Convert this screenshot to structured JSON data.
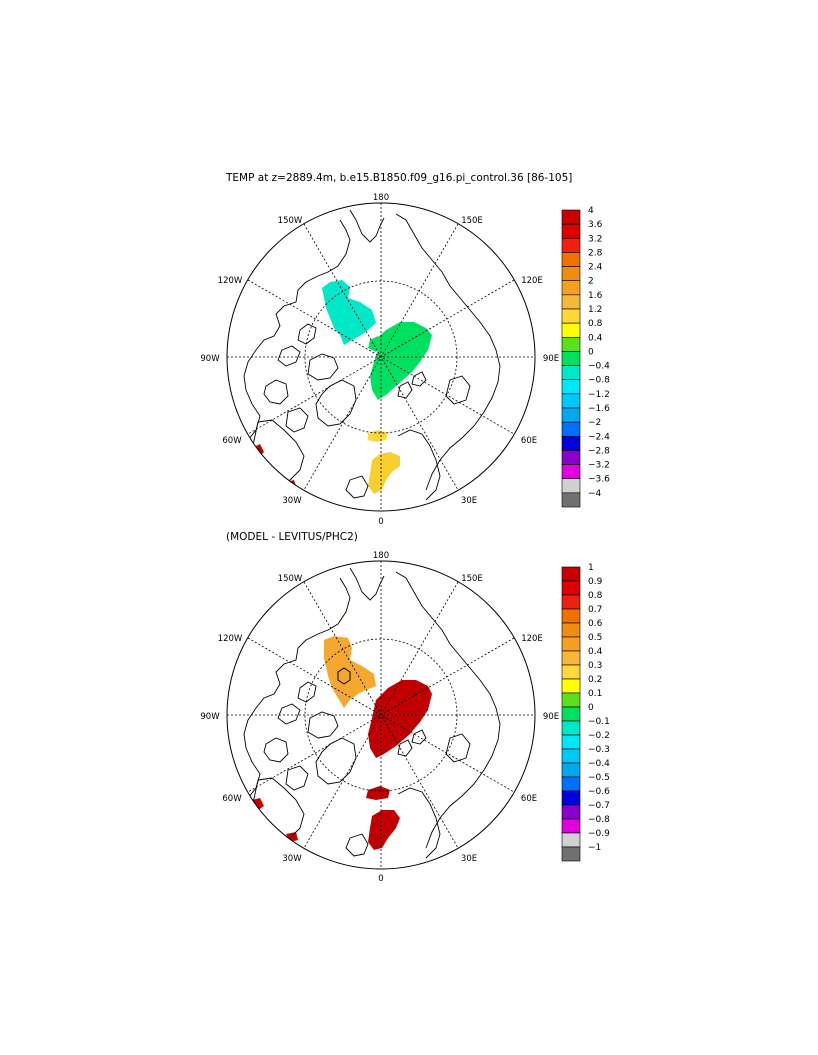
{
  "panels": {
    "top": {
      "title": "TEMP at z=2889.4m, b.e15.B1850.f09_g16.pi_control.36 [86-105]",
      "colorbar": {
        "labels": [
          "4",
          "3.6",
          "3.2",
          "2.8",
          "2.4",
          "2",
          "1.6",
          "1.2",
          "0.8",
          "0.4",
          "0",
          "−0.4",
          "−0.8",
          "−1.2",
          "−1.6",
          "−2",
          "−2.4",
          "−2.8",
          "−3.2",
          "−3.6",
          "−4"
        ],
        "colors": [
          "#c80000",
          "#de0000",
          "#f02010",
          "#f07000",
          "#f08c10",
          "#f5a020",
          "#f7b838",
          "#ffd83a",
          "#ffff00",
          "#5ce019",
          "#00e060",
          "#00e8c8",
          "#00e8f8",
          "#00c8f8",
          "#00a8f0",
          "#0070ff",
          "#0000e0",
          "#8800cc",
          "#e000e0",
          "#d0d0d0",
          "#707070"
        ]
      }
    },
    "bottom": {
      "title": "(MODEL - LEVITUS/PHC2)",
      "colorbar": {
        "labels": [
          "1",
          "0.9",
          "0.8",
          "0.7",
          "0.6",
          "0.5",
          "0.4",
          "0.3",
          "0.2",
          "0.1",
          "0",
          "−0.1",
          "−0.2",
          "−0.3",
          "−0.4",
          "−0.5",
          "−0.6",
          "−0.7",
          "−0.8",
          "−0.9",
          "−1"
        ],
        "colors": [
          "#c80000",
          "#de0000",
          "#f02010",
          "#f07000",
          "#f08c10",
          "#f5a020",
          "#f7b838",
          "#ffd83a",
          "#ffff00",
          "#5ce019",
          "#00e060",
          "#00e8c8",
          "#00e8f8",
          "#00c8f8",
          "#00a8f0",
          "#0070ff",
          "#0000e0",
          "#8800cc",
          "#e000e0",
          "#d0d0d0",
          "#707070"
        ]
      }
    }
  },
  "map_labels": {
    "lon_180": "180",
    "lon_150W": "150W",
    "lon_150E": "150E",
    "lon_120W": "120W",
    "lon_120E": "120E",
    "lon_90W": "90W",
    "lon_90E": "90E",
    "lon_60W": "60W",
    "lon_60E": "60E",
    "lon_30W": "30W",
    "lon_30E": "30E",
    "lon_0": "0"
  }
}
